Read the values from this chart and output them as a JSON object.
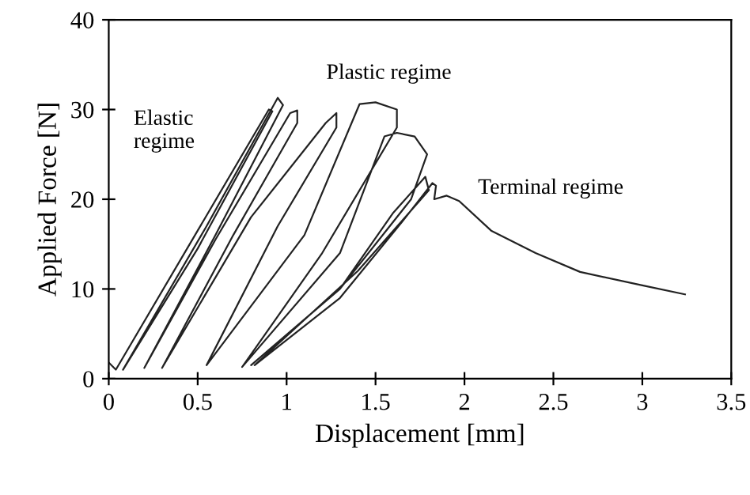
{
  "chart_data": {
    "type": "line",
    "xlabel": "Displacement [mm]",
    "ylabel": "Applied Force [N]",
    "xlim": [
      0,
      3.5
    ],
    "xticks": [
      0,
      0.5,
      1,
      1.5,
      2,
      2.5,
      3,
      3.5
    ],
    "ylim": [
      0,
      40
    ],
    "yticks": [
      0,
      10,
      20,
      30,
      40
    ],
    "grid": false,
    "marker": "none",
    "line_style": "solid",
    "series": [
      {
        "color": "#222222",
        "x": [
          0.0,
          0.04,
          0.5,
          0.9,
          0.92,
          0.5,
          0.08,
          0.55,
          0.95,
          0.98,
          0.6,
          0.2,
          0.6,
          1.02,
          1.06,
          1.06,
          0.7,
          0.3,
          0.8,
          1.22,
          1.28,
          1.28,
          0.95,
          0.55,
          1.1,
          1.41,
          1.5,
          1.62,
          1.62,
          1.2,
          0.75,
          1.3,
          1.55,
          1.62,
          1.72,
          1.79,
          1.7,
          1.3,
          0.8,
          1.3,
          1.6,
          1.78,
          1.8,
          1.4,
          0.82,
          1.3,
          1.65,
          1.82,
          1.84,
          1.83,
          1.9,
          1.97,
          2.15,
          2.4,
          2.65,
          3.0,
          3.24
        ],
        "values": [
          1.8,
          1.0,
          16.5,
          30.0,
          29.8,
          14.5,
          1.0,
          17.0,
          31.3,
          30.5,
          16.0,
          1.2,
          15.5,
          29.6,
          29.9,
          28.5,
          16.0,
          1.2,
          18.0,
          28.5,
          29.6,
          28.0,
          17.0,
          1.5,
          16.0,
          30.6,
          30.8,
          30.0,
          28.0,
          14.0,
          1.3,
          14.0,
          27.0,
          27.4,
          27.0,
          25.0,
          20.0,
          10.0,
          1.5,
          10.0,
          18.5,
          22.5,
          21.0,
          12.0,
          1.5,
          9.0,
          17.5,
          21.8,
          21.5,
          20.0,
          20.4,
          19.8,
          16.5,
          14.0,
          11.9,
          10.4,
          9.4
        ]
      }
    ],
    "annotations": [
      "Elastic\nregime",
      "Plastic regime",
      "Terminal regime"
    ]
  }
}
